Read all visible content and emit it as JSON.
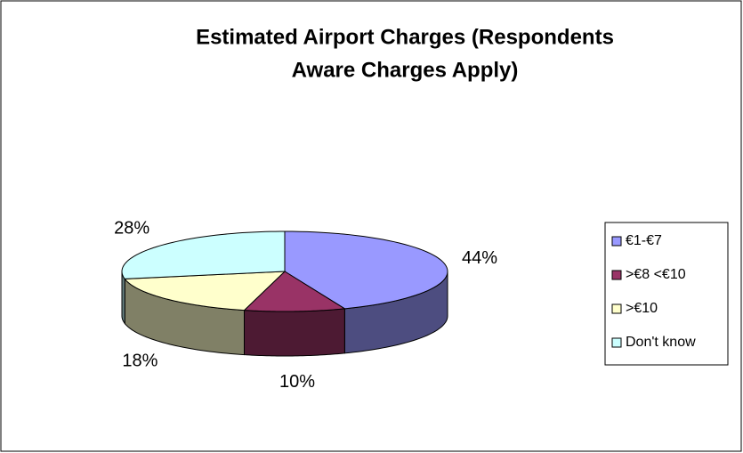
{
  "chart_data": {
    "type": "pie3d",
    "title": [
      "Estimated Airport Charges (Respondents",
      "Aware Charges Apply)"
    ],
    "categories": [
      "€1-€7",
      ">€8 <€10",
      ">€10",
      "Don't know"
    ],
    "values": [
      44,
      10,
      18,
      28
    ],
    "value_labels": [
      "44%",
      "10%",
      "18%",
      "28%"
    ],
    "colors": [
      "#9999ff",
      "#993366",
      "#ffffcc",
      "#ccffff"
    ],
    "legend": "right"
  }
}
